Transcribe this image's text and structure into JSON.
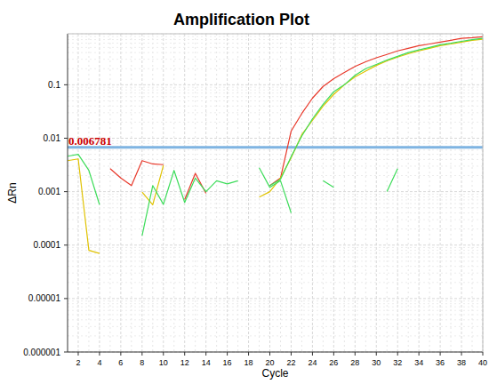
{
  "chart_data": {
    "type": "line",
    "title": "Amplification Plot",
    "x_label": "Cycle",
    "y_label": "ΔRn",
    "log": "y",
    "grid": true,
    "x": [
      1,
      2,
      3,
      4,
      5,
      6,
      7,
      8,
      9,
      10,
      11,
      12,
      13,
      14,
      15,
      16,
      17,
      18,
      19,
      20,
      21,
      22,
      23,
      24,
      25,
      26,
      27,
      28,
      29,
      30,
      31,
      32,
      33,
      34,
      35,
      36,
      37,
      38,
      39,
      40
    ],
    "xlim": [
      1,
      40
    ],
    "xticks": [
      2,
      4,
      6,
      8,
      10,
      12,
      14,
      16,
      18,
      20,
      22,
      24,
      26,
      28,
      30,
      32,
      34,
      36,
      38,
      40
    ],
    "ylim": [
      1e-06,
      0.9
    ],
    "yticks": [
      1e-06,
      1e-05,
      0.0001,
      0.001,
      0.01,
      0.1
    ],
    "threshold": {
      "value": 0.006781,
      "color": "#7fb4e2",
      "label_color": "#cc0000"
    },
    "series": [
      {
        "color": "#e8382a",
        "values": [
          null,
          null,
          null,
          null,
          0.0027,
          0.0018,
          0.0013,
          0.0038,
          0.0033,
          0.0032,
          null,
          0.00071,
          0.0022,
          0.00093,
          null,
          null,
          null,
          null,
          null,
          0.0013,
          0.0018,
          0.0136,
          0.029,
          0.056,
          0.093,
          0.13,
          0.17,
          0.22,
          0.27,
          0.32,
          0.37,
          0.43,
          0.48,
          0.54,
          0.58,
          0.63,
          0.68,
          0.74,
          0.76,
          0.79
        ]
      },
      {
        "color": "#e0c200",
        "values": [
          0.0038,
          0.0041,
          8e-05,
          7e-05,
          null,
          null,
          null,
          0.00098,
          0.00057,
          0.0031,
          null,
          null,
          null,
          null,
          null,
          null,
          null,
          null,
          0.00079,
          0.001,
          0.0018,
          0.0043,
          0.0117,
          0.0215,
          0.04,
          0.066,
          0.1,
          0.14,
          0.18,
          0.23,
          0.28,
          0.33,
          0.38,
          0.43,
          0.48,
          0.54,
          0.58,
          0.63,
          0.68,
          0.71
        ]
      },
      {
        "color": "#3ddc5a",
        "values": [
          0.0046,
          0.005,
          0.0025,
          0.00057,
          null,
          null,
          null,
          0.00015,
          0.0013,
          0.00058,
          0.0025,
          0.00063,
          0.0018,
          0.001,
          0.0016,
          0.0014,
          0.0016,
          null,
          null,
          0.0013,
          0.0017,
          0.0045,
          0.011,
          0.023,
          0.043,
          0.074,
          0.1,
          0.15,
          0.2,
          0.24,
          0.29,
          0.34,
          0.4,
          0.45,
          0.5,
          0.56,
          0.6,
          0.65,
          0.7,
          0.74
        ]
      },
      {
        "color": "#3ddc5a",
        "values": [
          null,
          null,
          null,
          null,
          null,
          null,
          null,
          null,
          null,
          null,
          null,
          null,
          null,
          null,
          null,
          null,
          null,
          null,
          0.0028,
          0.0012,
          0.0016,
          0.0004,
          null,
          null,
          0.0016,
          0.0012,
          null,
          null,
          null,
          null,
          0.001,
          0.0027,
          null,
          null,
          null,
          null,
          null,
          null,
          null,
          null
        ]
      }
    ]
  }
}
